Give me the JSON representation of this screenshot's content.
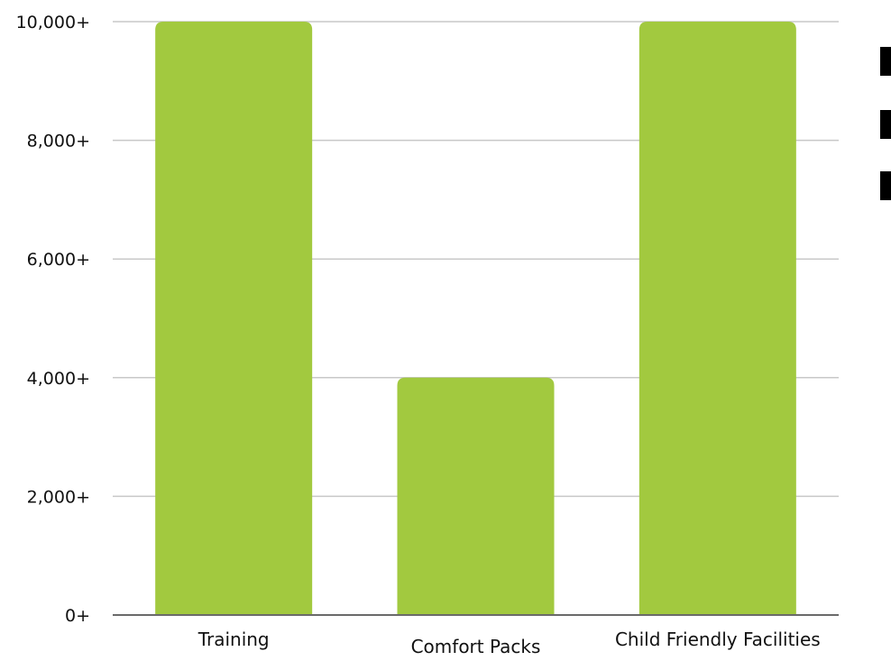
{
  "chart_data": {
    "type": "bar",
    "categories": [
      "Training",
      "Comfort Packs",
      "Child Friendly Facilities"
    ],
    "values": [
      10000,
      4000,
      10000
    ],
    "ylim": [
      0,
      10000
    ],
    "y_ticks": [
      "0+",
      "2,000+",
      "4,000+",
      "6,000+",
      "8,000+",
      "10,000+"
    ],
    "grid": true,
    "legend": "none",
    "bar_color": "#a2c93f",
    "title": "",
    "xlabel": "",
    "ylabel": ""
  },
  "cut_off_text": [
    "",
    "",
    ""
  ]
}
